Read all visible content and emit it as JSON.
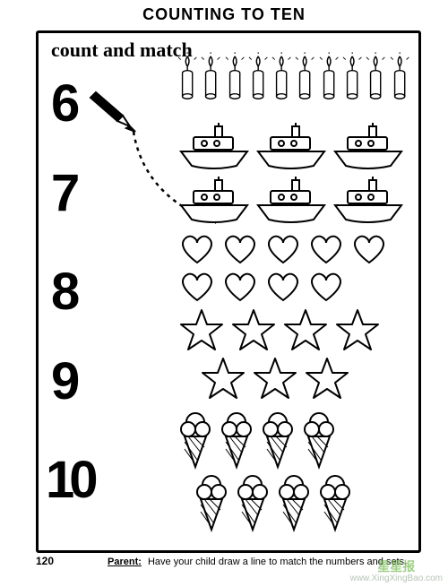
{
  "title": "COUNTING TO TEN",
  "instruction": "count and match",
  "numbers": [
    "6",
    "7",
    "8",
    "9",
    "10"
  ],
  "sets": {
    "candles": {
      "count": 10,
      "rows": [
        10
      ]
    },
    "boats": {
      "count": 6,
      "rows": [
        3,
        3
      ]
    },
    "hearts": {
      "count": 9,
      "rows": [
        5,
        4
      ]
    },
    "stars": {
      "count": 7,
      "rows": [
        4,
        3
      ]
    },
    "cones": {
      "count": 8,
      "rows": [
        4,
        4
      ]
    }
  },
  "colors": {
    "stroke": "#000000",
    "fill": "#ffffff",
    "background": "#ffffff"
  },
  "page_number": "120",
  "footer": {
    "label": "Parent:",
    "text": "Have your child draw a line to match the numbers and sets."
  },
  "watermark": {
    "cn": "星星报",
    "url": "www.XingXingBao.com"
  }
}
